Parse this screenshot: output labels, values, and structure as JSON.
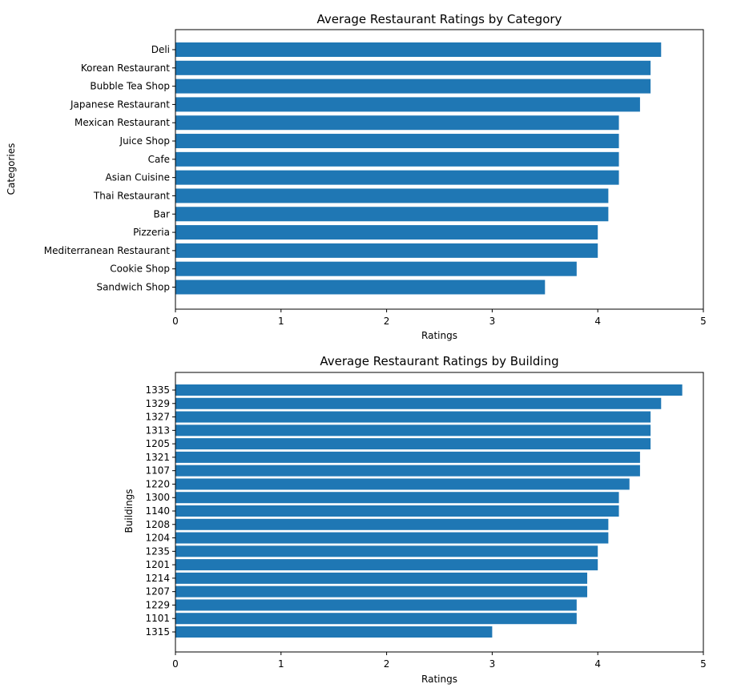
{
  "chart_data": [
    {
      "type": "bar",
      "orientation": "horizontal",
      "title": "Average Restaurant Ratings by Category",
      "xlabel": "Ratings",
      "ylabel": "Categories",
      "xlim": [
        0,
        5
      ],
      "xticks": [
        "0",
        "1",
        "2",
        "3",
        "4",
        "5"
      ],
      "grid": false,
      "bar_color": "#1f77b4",
      "categories": [
        "Deli",
        "Korean Restaurant",
        "Bubble Tea Shop",
        "Japanese Restaurant",
        "Mexican Restaurant",
        "Juice Shop",
        "Cafe",
        "Asian Cuisine ",
        "Thai Restaurant",
        "Bar",
        "Pizzeria",
        "Mediterranean Restaurant",
        "Cookie Shop",
        "Sandwich Shop"
      ],
      "values": [
        4.6,
        4.5,
        4.5,
        4.4,
        4.2,
        4.2,
        4.2,
        4.2,
        4.1,
        4.1,
        4.0,
        4.0,
        3.8,
        3.5
      ]
    },
    {
      "type": "bar",
      "orientation": "horizontal",
      "title": "Average Restaurant Ratings by Building",
      "xlabel": "Ratings",
      "ylabel": "Buildings",
      "xlim": [
        0,
        5
      ],
      "xticks": [
        "0",
        "1",
        "2",
        "3",
        "4",
        "5"
      ],
      "grid": false,
      "bar_color": "#1f77b4",
      "categories": [
        "1335",
        "1329",
        "1327",
        "1313",
        "1205",
        "1321",
        "1107",
        "1220",
        "1300",
        "1140",
        "1208",
        "1204",
        "1235",
        "1201",
        "1214",
        "1207",
        "1229",
        "1101",
        "1315"
      ],
      "values": [
        4.8,
        4.6,
        4.5,
        4.5,
        4.5,
        4.4,
        4.4,
        4.3,
        4.2,
        4.2,
        4.1,
        4.1,
        4.0,
        4.0,
        3.9,
        3.9,
        3.8,
        3.8,
        3.0
      ]
    }
  ]
}
